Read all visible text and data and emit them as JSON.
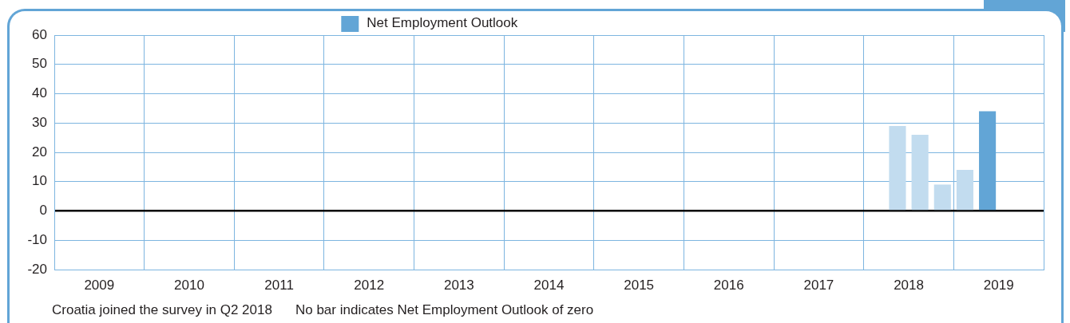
{
  "chart_data": {
    "type": "bar",
    "categories": [
      "2009",
      "2010",
      "2011",
      "2012",
      "2013",
      "2014",
      "2015",
      "2016",
      "2017",
      "2018",
      "2019"
    ],
    "series": [
      {
        "color": "#c2dcef",
        "values": [
          null,
          null,
          null,
          null,
          null,
          null,
          null,
          null,
          null,
          null,
          14
        ]
      },
      {
        "name": "Net Employment Outlook",
        "color": "#62a5d6",
        "colors": [
          "#c2dcef",
          "#c2dcef",
          "#c2dcef",
          "#c2dcef",
          "#c2dcef",
          "#c2dcef",
          "#c2dcef",
          "#c2dcef",
          "#c2dcef",
          "#c2dcef",
          "#62a5d6"
        ],
        "values": [
          null,
          null,
          null,
          null,
          null,
          null,
          null,
          null,
          null,
          29,
          34
        ]
      },
      {
        "color": "#c2dcef",
        "values": [
          null,
          null,
          null,
          null,
          null,
          null,
          null,
          null,
          null,
          26,
          null
        ]
      },
      {
        "color": "#c2dcef",
        "values": [
          null,
          null,
          null,
          null,
          null,
          null,
          null,
          null,
          null,
          9,
          null
        ]
      }
    ],
    "ylim": [
      -20,
      60
    ],
    "yticks": [
      -20,
      -10,
      0,
      10,
      20,
      30,
      40,
      50,
      60
    ],
    "grid": true,
    "legend": "top",
    "annotations": [
      "Croatia joined the survey in Q2 2018",
      "No bar indicates Net Employment Outlook of zero"
    ]
  }
}
